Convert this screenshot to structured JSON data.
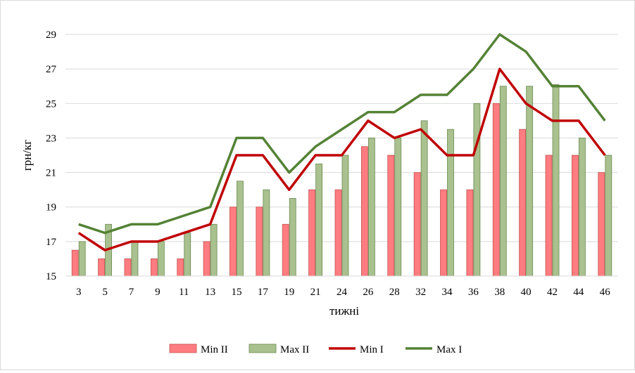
{
  "chart_data": {
    "type": "bar",
    "categories": [
      "3",
      "5",
      "7",
      "9",
      "11",
      "13",
      "15",
      "17",
      "19",
      "21",
      "24",
      "26",
      "28",
      "32",
      "34",
      "36",
      "38",
      "40",
      "42",
      "44",
      "46"
    ],
    "series": [
      {
        "name": "Min II",
        "type": "bar",
        "color": "#ff7c80",
        "values": [
          16.5,
          16,
          16,
          16,
          16,
          17,
          19,
          19,
          18,
          20,
          20,
          22.5,
          22,
          21,
          20,
          20,
          25,
          23.5,
          22,
          22,
          21
        ]
      },
      {
        "name": "Max II",
        "type": "bar",
        "color": "#a9c08f",
        "values": [
          17,
          18,
          17,
          17,
          17.5,
          18,
          20.5,
          20,
          19.5,
          21.5,
          22,
          23,
          23,
          24,
          23.5,
          25,
          26,
          26,
          26.1,
          23,
          22
        ]
      },
      {
        "name": "Min I",
        "type": "line",
        "color": "#c00000",
        "values": [
          17.5,
          16.5,
          17,
          17,
          17.5,
          18,
          22,
          22,
          20,
          22,
          22,
          24,
          23,
          23.5,
          22,
          22,
          27,
          25,
          24,
          24,
          22
        ]
      },
      {
        "name": "Max I",
        "type": "line",
        "color": "#548235",
        "values": [
          18,
          17.5,
          18,
          18,
          18.5,
          19,
          23,
          23,
          21,
          22.5,
          23.5,
          24.5,
          24.5,
          25.5,
          25.5,
          27,
          29,
          28,
          26,
          26,
          24
        ]
      }
    ],
    "xlabel": "тижні",
    "ylabel": "грн/кг",
    "ylim": [
      15,
      29
    ],
    "yticks": [
      15,
      17,
      19,
      21,
      23,
      25,
      27,
      29
    ],
    "grid": true,
    "legend": "bottom"
  },
  "colors": {
    "grid": "#d9d9d9",
    "bar_outline_min": "#c0504d",
    "bar_outline_max": "#6a8a4e"
  }
}
